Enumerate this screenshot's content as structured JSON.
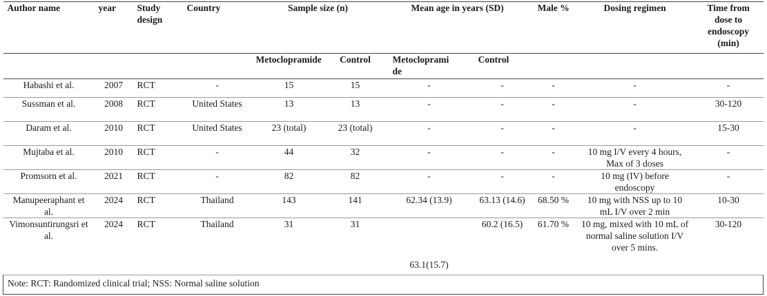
{
  "headers": {
    "author": "Author name",
    "year": "year",
    "design": "Study design",
    "country": "Country",
    "sample": "Sample size (n)",
    "age": "Mean age in years (SD)",
    "male": "Male %",
    "dosing": "Dosing regimen",
    "time": "Time from dose to endoscopy (min)"
  },
  "subheaders": {
    "sample_meto": "Metoclopramide",
    "sample_ctrl": "Control",
    "age_meto": "Metoclopramide",
    "age_ctrl": "Control"
  },
  "rows": [
    {
      "author": "Habashi et al.",
      "year": "2007",
      "design": "RCT",
      "country": "-",
      "n_meto": "15",
      "n_ctrl": "15",
      "age_meto": "-",
      "age_ctrl": "-",
      "male": "-",
      "dosing": "-",
      "time": "-"
    },
    {
      "author": "Sussman et al.",
      "year": "2008",
      "design": "RCT",
      "country": "United States",
      "n_meto": "13",
      "n_ctrl": "13",
      "age_meto": "-",
      "age_ctrl": "-",
      "male": "-",
      "dosing": "-",
      "time": "30-120"
    },
    {
      "author": "Daram et al.",
      "year": "2010",
      "design": "RCT",
      "country": "United States",
      "n_meto": "23 (total)",
      "n_ctrl": "23 (total)",
      "age_meto": "-",
      "age_ctrl": "-",
      "male": "-",
      "dosing": "-",
      "time": "15-30"
    },
    {
      "author": "Mujtaba et al.",
      "year": "2010",
      "design": "RCT",
      "country": "-",
      "n_meto": "44",
      "n_ctrl": "32",
      "age_meto": "-",
      "age_ctrl": "-",
      "male": "-",
      "dosing": "10 mg I/V every 4 hours, Max of 3 doses",
      "time": "-"
    },
    {
      "author": "Promsorn et al.",
      "year": "2021",
      "design": "RCT",
      "country": "-",
      "n_meto": "82",
      "n_ctrl": "82",
      "age_meto": "-",
      "age_ctrl": "-",
      "male": "-",
      "dosing": "10 mg (IV) before endoscopy",
      "time": "-"
    },
    {
      "author": "Manupeeraphant et al.",
      "year": "2024",
      "design": "RCT",
      "country": "Thailand",
      "n_meto": "143",
      "n_ctrl": "141",
      "age_meto": "62.34 (13.9)",
      "age_ctrl": "63.13 (14.6)",
      "male": "68.50 %",
      "dosing": "10 mg with NSS up to 10 mL I/V over 2 min",
      "time": "10-30"
    },
    {
      "author": "Vimonsuntirungsri et al.",
      "year": "2024",
      "design": "RCT",
      "country": "Thailand",
      "n_meto": "31",
      "n_ctrl": "31",
      "age_meto": "63.1(15.7)",
      "age_ctrl": "60.2 (16.5)",
      "male": "61.70 %",
      "dosing": "10 mg, mixed with 10 mL of normal saline solution I/V over 5 mins.",
      "time": "30-120"
    }
  ],
  "note": "Note: RCT: Randomized clinical trial; NSS: Normal saline solution"
}
